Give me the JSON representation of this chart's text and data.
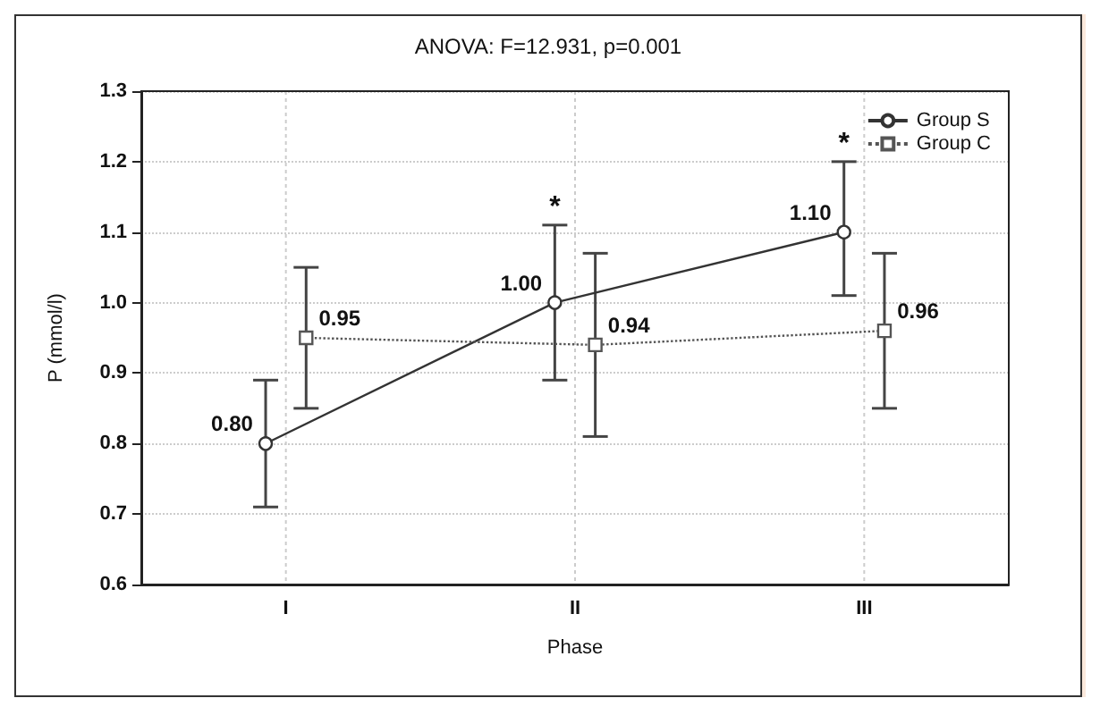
{
  "chart_data": {
    "type": "line",
    "title": "ANOVA: F=12.931, p=0.001",
    "xlabel": "Phase",
    "ylabel": "P (mmol/l)",
    "categories": [
      "I",
      "II",
      "III"
    ],
    "series": [
      {
        "name": "Group S",
        "color": "#333333",
        "values": [
          0.8,
          1.0,
          1.1
        ],
        "errors": [
          [
            0.71,
            0.89
          ],
          [
            0.89,
            1.11
          ],
          [
            1.01,
            1.2
          ]
        ],
        "value_labels": [
          "0.80",
          "1.00",
          "1.10"
        ],
        "marker": "circle",
        "line_style": "solid"
      },
      {
        "name": "Group C",
        "color": "#555555",
        "values": [
          0.95,
          0.94,
          0.96
        ],
        "errors": [
          [
            0.85,
            1.05
          ],
          [
            0.81,
            1.07
          ],
          [
            0.85,
            1.07
          ]
        ],
        "value_labels": [
          "0.95",
          "0.94",
          "0.96"
        ],
        "marker": "square",
        "line_style": "dotted"
      }
    ],
    "ylim": [
      0.6,
      1.3
    ],
    "yticks": [
      0.6,
      0.7,
      0.8,
      0.9,
      {
        "value": 1.0,
        "label": "1.0"
      },
      1.1,
      1.2,
      1.3
    ],
    "annotations": [
      {
        "text": "*",
        "x": "II",
        "y": 1.11
      },
      {
        "text": "*",
        "x": "III",
        "y": 1.2
      }
    ],
    "grid": true,
    "legend": "top right"
  }
}
